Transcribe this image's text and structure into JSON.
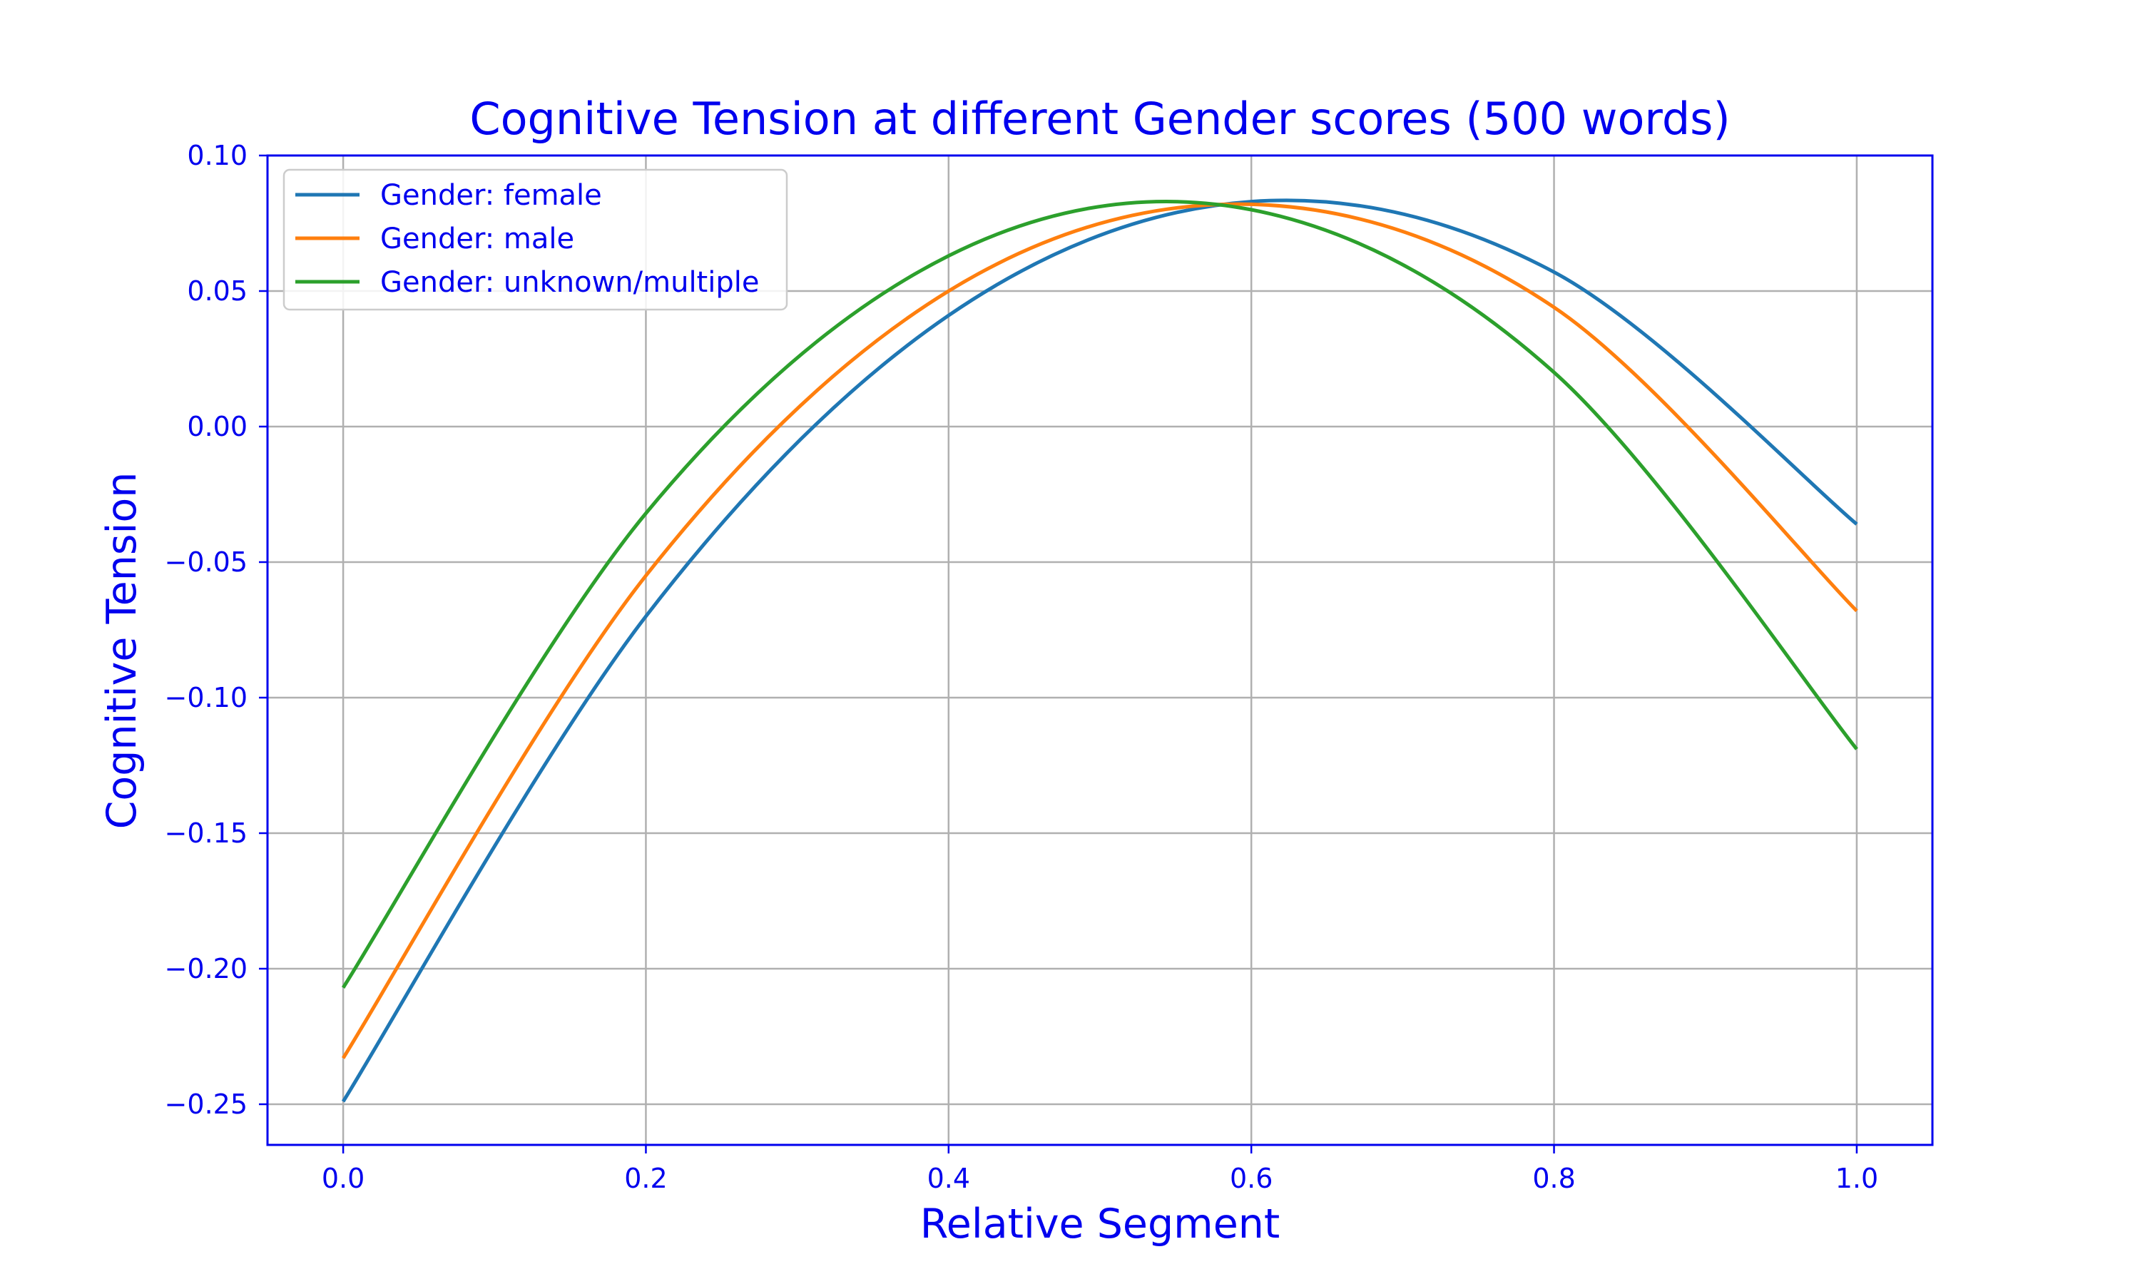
{
  "chart_data": {
    "type": "line",
    "title": "Cognitive Tension at different Gender scores (500 words)",
    "xlabel": "Relative Segment",
    "ylabel": "Cognitive Tension",
    "xlim": [
      -0.05,
      1.05
    ],
    "ylim": [
      -0.265,
      0.1
    ],
    "xticks": [
      "0.0",
      "0.2",
      "0.4",
      "0.6",
      "0.8",
      "1.0"
    ],
    "yticks": [
      "0.10",
      "0.05",
      "0.00",
      "−0.05",
      "−0.10",
      "−0.15",
      "−0.20",
      "−0.25"
    ],
    "grid": true,
    "legend_position": "top-left",
    "x": [
      0.0,
      0.2,
      0.4,
      0.6,
      0.8,
      1.0
    ],
    "series": [
      {
        "name": "Gender: female",
        "color": "#1f77b4",
        "values": [
          -0.249,
          -0.07,
          0.041,
          0.083,
          0.057,
          -0.036
        ]
      },
      {
        "name": "Gender: male",
        "color": "#ff7f0e",
        "values": [
          -0.233,
          -0.055,
          0.05,
          0.082,
          0.044,
          -0.068
        ]
      },
      {
        "name": "Gender: unknown/multiple",
        "color": "#2ca02c",
        "values": [
          -0.207,
          -0.032,
          0.063,
          0.08,
          0.02,
          -0.119
        ]
      }
    ]
  }
}
